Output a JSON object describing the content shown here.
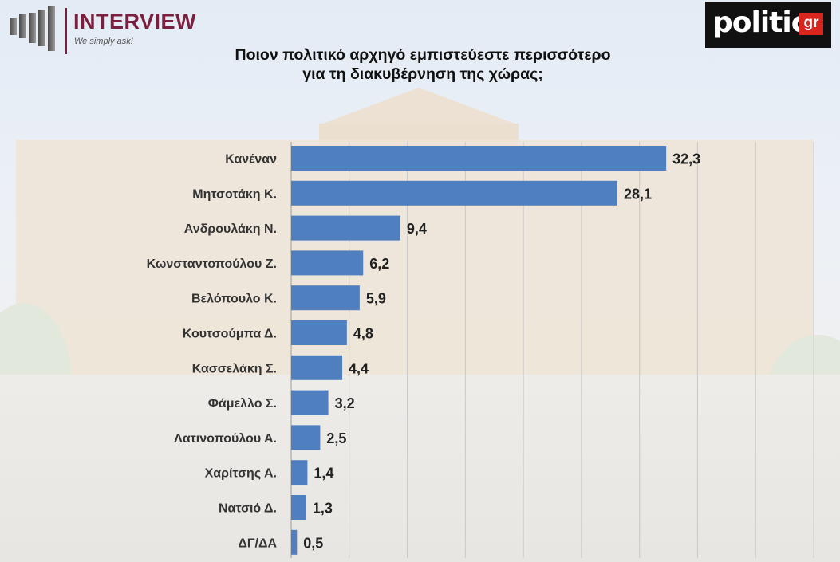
{
  "header": {
    "brand_name": "INTERVIEW",
    "brand_tagline": "We simply ask!",
    "partner_logo_word": "politic",
    "partner_logo_suffix": "gr"
  },
  "colors": {
    "bar": "#4f7fbf",
    "brand": "#7a1f3d",
    "partner_accent": "#d7261e"
  },
  "chart_data": {
    "type": "bar",
    "orientation": "horizontal",
    "title": "Ποιον πολιτικό αρχηγό εμπιστεύεστε περισσότερο\nγια τη διακυβέρνηση της χώρας;",
    "categories": [
      "Κανέναν",
      "Μητσοτάκη Κ.",
      "Ανδρουλάκη Ν.",
      "Κωνσταντοπούλου Ζ.",
      "Βελόπουλο Κ.",
      "Κουτσούμπα Δ.",
      "Κασσελάκη Σ.",
      "Φάμελλο Σ.",
      "Λατινοπούλου Α.",
      "Χαρίτσης Α.",
      "Νατσιό Δ.",
      "ΔΓ/ΔΑ"
    ],
    "values": [
      32.3,
      28.1,
      9.4,
      6.2,
      5.9,
      4.8,
      4.4,
      3.2,
      2.5,
      1.4,
      1.3,
      0.5
    ],
    "value_labels": [
      "32,3",
      "28,1",
      "9,4",
      "6,2",
      "5,9",
      "4,8",
      "4,4",
      "3,2",
      "2,5",
      "1,4",
      "1,3",
      "0,5"
    ],
    "xlim": [
      0,
      45
    ],
    "grid": true
  }
}
